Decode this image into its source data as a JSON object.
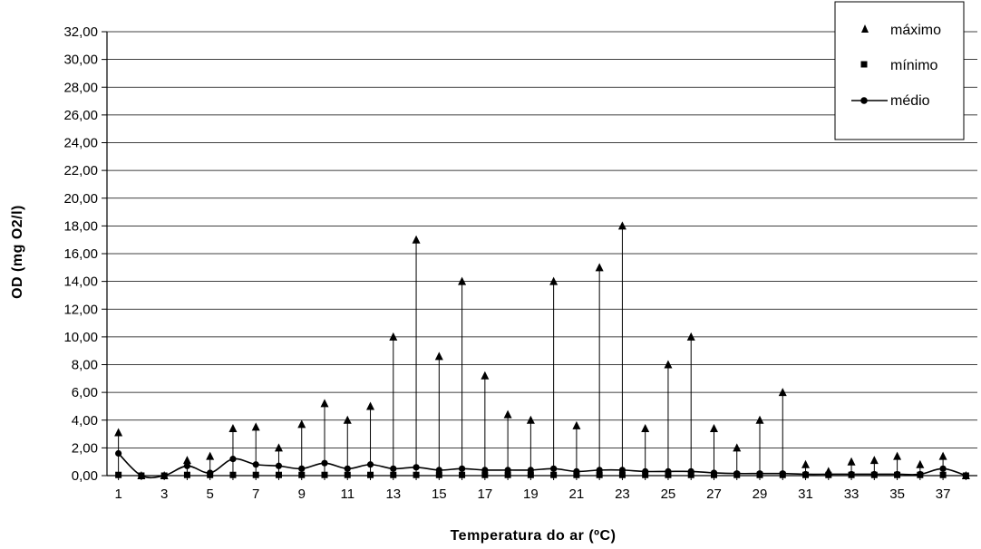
{
  "chart_data": {
    "type": "scatter",
    "title": "",
    "xlabel": "Temperatura do ar (ºC)",
    "ylabel": "OD (mg O2/l)",
    "x": [
      1,
      2,
      3,
      4,
      5,
      6,
      7,
      8,
      9,
      10,
      11,
      12,
      13,
      14,
      15,
      16,
      17,
      18,
      19,
      20,
      21,
      22,
      23,
      24,
      25,
      26,
      27,
      28,
      29,
      30,
      31,
      32,
      33,
      34,
      35,
      36,
      37,
      38
    ],
    "xticks": [
      "1",
      "3",
      "5",
      "7",
      "9",
      "11",
      "13",
      "15",
      "17",
      "19",
      "21",
      "23",
      "25",
      "27",
      "29",
      "31",
      "33",
      "35",
      "37"
    ],
    "yticks": [
      "0,00",
      "2,00",
      "4,00",
      "6,00",
      "8,00",
      "10,00",
      "12,00",
      "14,00",
      "16,00",
      "18,00",
      "20,00",
      "22,00",
      "24,00",
      "26,00",
      "28,00",
      "30,00",
      "32,00"
    ],
    "ylim": [
      0,
      32
    ],
    "grid": "horizontal",
    "legend_position": "top-right",
    "series": [
      {
        "name": "máximo",
        "marker": "triangle",
        "values": [
          3.1,
          0,
          0,
          1.1,
          1.4,
          3.4,
          3.5,
          2.0,
          3.7,
          5.2,
          4.0,
          5.0,
          10.0,
          17.0,
          8.6,
          14.0,
          7.2,
          4.4,
          4.0,
          14.0,
          3.6,
          15.0,
          18.0,
          3.4,
          8.0,
          10.0,
          3.4,
          2.0,
          4.0,
          6.0,
          0.8,
          0.3,
          1.0,
          1.1,
          1.4,
          0.8,
          1.4,
          0
        ]
      },
      {
        "name": "mínimo",
        "marker": "square",
        "values": [
          0.05,
          0,
          0,
          0.05,
          0.05,
          0.05,
          0.05,
          0.05,
          0.05,
          0.05,
          0.05,
          0.05,
          0.05,
          0.05,
          0.05,
          0.05,
          0.05,
          0.05,
          0.05,
          0.05,
          0.05,
          0.05,
          0.05,
          0.05,
          0.05,
          0.05,
          0.05,
          0.05,
          0.05,
          0.05,
          0.05,
          0.05,
          0.05,
          0.05,
          0.05,
          0.05,
          0.05,
          0
        ]
      },
      {
        "name": "médio",
        "marker": "circle-line",
        "values": [
          1.6,
          0,
          0,
          0.7,
          0.2,
          1.2,
          0.8,
          0.7,
          0.5,
          0.9,
          0.5,
          0.8,
          0.5,
          0.6,
          0.4,
          0.5,
          0.4,
          0.4,
          0.4,
          0.5,
          0.3,
          0.4,
          0.4,
          0.3,
          0.3,
          0.3,
          0.2,
          0.15,
          0.15,
          0.15,
          0.1,
          0.1,
          0.1,
          0.1,
          0.1,
          0.1,
          0.5,
          0
        ]
      }
    ],
    "colors": {
      "marker": "#000000",
      "grid": "#000000",
      "background": "#ffffff"
    }
  }
}
